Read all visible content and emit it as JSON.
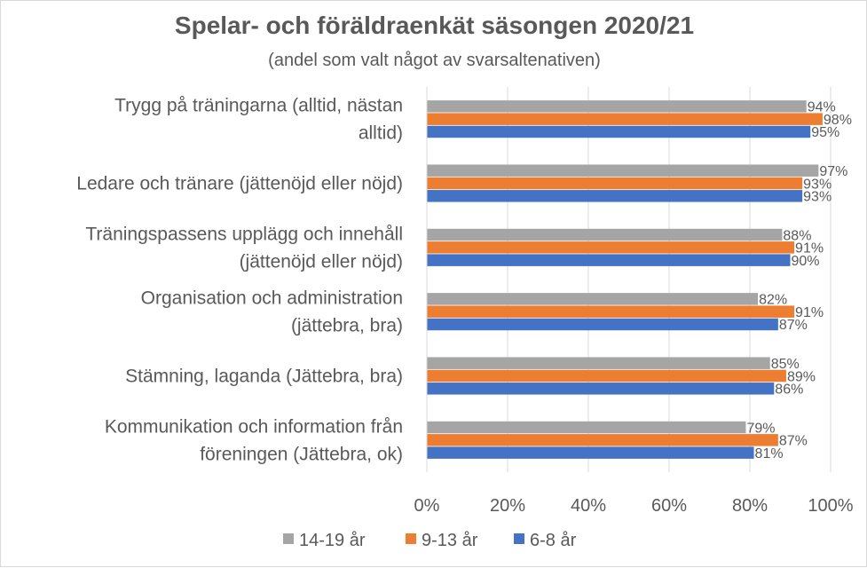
{
  "chart_data": {
    "type": "bar",
    "orientation": "horizontal",
    "title": "Spelar- och föräldraenkät säsongen 2020/21",
    "subtitle": "(andel som valt något av svarsaltenativen)",
    "categories": [
      [
        "Trygg på träningarna (alltid, nästan",
        "alltid)"
      ],
      [
        "Ledare och tränare (jättenöjd eller nöjd)"
      ],
      [
        "Träningspassens upplägg och innehåll",
        "(jättenöjd eller nöjd)"
      ],
      [
        "Organisation och administration",
        "(jättebra, bra)"
      ],
      [
        "Stämning, laganda (Jättebra, bra)"
      ],
      [
        "Kommunikation och information från",
        "föreningen (Jättebra, ok)"
      ]
    ],
    "series": [
      {
        "name": "14-19 år",
        "color": "#a5a5a5",
        "values": [
          94,
          97,
          88,
          82,
          85,
          79
        ]
      },
      {
        "name": "9-13 år",
        "color": "#ed7d31",
        "values": [
          98,
          93,
          91,
          91,
          89,
          87
        ]
      },
      {
        "name": "6-8 år",
        "color": "#4472c4",
        "values": [
          95,
          93,
          90,
          87,
          86,
          81
        ]
      }
    ],
    "xlim": [
      0,
      100
    ],
    "x_ticks": [
      "0%",
      "20%",
      "40%",
      "60%",
      "80%",
      "100%"
    ],
    "value_suffix": "%",
    "grid": "vertical",
    "legend_position": "bottom"
  }
}
